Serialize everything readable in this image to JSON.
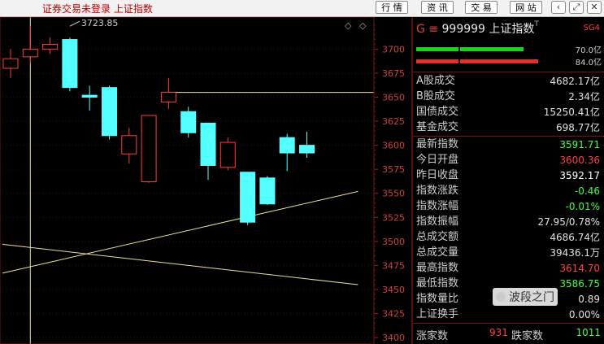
{
  "window": {
    "status_text": "证券交易未登录  上证指数",
    "buttons": [
      "行 情",
      "资 讯",
      "交 易",
      "网 站"
    ],
    "window_controls": [
      "chevron-left-icon",
      "close-icon"
    ]
  },
  "chart_data": {
    "type": "candlestick",
    "ytick_labels": [
      "3700",
      "3675",
      "3650",
      "3625",
      "3600",
      "3575",
      "3550",
      "3525",
      "3500",
      "3475",
      "3450",
      "3425",
      "3400"
    ],
    "ylim": [
      3395,
      3735
    ],
    "annotation": "3723.85",
    "candles": [
      {
        "open": 3680,
        "close": 3690,
        "high": 3700,
        "low": 3670
      },
      {
        "open": 3692,
        "close": 3700,
        "high": 3723.85,
        "low": 3685
      },
      {
        "open": 3700,
        "close": 3705,
        "high": 3712,
        "low": 3695
      },
      {
        "open": 3710,
        "close": 3660,
        "high": 3712,
        "low": 3656
      },
      {
        "open": 3652,
        "close": 3650,
        "high": 3662,
        "low": 3636
      },
      {
        "open": 3660,
        "close": 3610,
        "high": 3662,
        "low": 3606
      },
      {
        "open": 3591,
        "close": 3610,
        "high": 3618,
        "low": 3581
      },
      {
        "open": 3562,
        "close": 3631,
        "high": 3631,
        "low": 3561
      },
      {
        "open": 3645,
        "close": 3655,
        "high": 3670,
        "low": 3638
      },
      {
        "open": 3635,
        "close": 3613,
        "high": 3640,
        "low": 3608
      },
      {
        "open": 3623,
        "close": 3579,
        "high": 3623,
        "low": 3564
      },
      {
        "open": 3577,
        "close": 3603,
        "high": 3608,
        "low": 3574
      },
      {
        "open": 3572,
        "close": 3520,
        "high": 3572,
        "low": 3517
      },
      {
        "open": 3566,
        "close": 3539,
        "high": 3568,
        "low": 3538
      },
      {
        "open": 3608,
        "close": 3592,
        "high": 3612,
        "low": 3573
      },
      {
        "open": 3600,
        "close": 3592,
        "high": 3614,
        "low": 3587
      }
    ],
    "hline": 3655,
    "trend_up": [
      [
        0,
        3467
      ],
      [
        18,
        3552
      ]
    ],
    "trend_down": [
      [
        0,
        3497
      ],
      [
        18,
        3455
      ]
    ]
  },
  "quote_panel": {
    "prefix": "G",
    "code": "999999",
    "name": "上证指数",
    "sup": "T",
    "tag": "SG4",
    "bar_labels": [
      "70.0亿",
      "84.0亿"
    ],
    "rows_top": [
      {
        "label": "A股成交",
        "value": "4682.17亿"
      },
      {
        "label": "B股成交",
        "value": "2.34亿"
      },
      {
        "label": "国债成交",
        "value": "15250.41亿"
      },
      {
        "label": "基金成交",
        "value": "698.77亿"
      }
    ],
    "rows_bottom": [
      {
        "label": "最新指数",
        "value": "3591.71",
        "color": "#40ff40"
      },
      {
        "label": "今日开盘",
        "value": "3600.36",
        "color": "#ff4040"
      },
      {
        "label": "昨日收盘",
        "value": "3592.17",
        "color": "#ffffff"
      },
      {
        "label": "指数涨跌",
        "value": "-0.46",
        "color": "#40ff40"
      },
      {
        "label": "指数涨幅",
        "value": "-0.01%",
        "color": "#40ff40"
      },
      {
        "label": "指数振幅",
        "value": "27.95/0.78%",
        "color": "#e0e0e0"
      },
      {
        "label": "总成交额",
        "value": "4686.74亿",
        "color": "#e0e0e0"
      },
      {
        "label": "总成交量",
        "value": "39436.1万",
        "color": "#e0e0e0"
      },
      {
        "label": "最高指数",
        "value": "3614.70",
        "color": "#ff4040"
      },
      {
        "label": "最低指数",
        "value": "3586.75",
        "color": "#40ff40"
      },
      {
        "label": "指数量比",
        "value": "0.89",
        "color": "#e0e0e0"
      },
      {
        "label": "上证换手",
        "value": "0.00%",
        "color": "#e0e0e0"
      }
    ],
    "footer": {
      "up_label": "涨家数",
      "up_value": "931",
      "down_label": "跌家数",
      "down_value": "1011"
    },
    "watermark": "波段之门"
  }
}
